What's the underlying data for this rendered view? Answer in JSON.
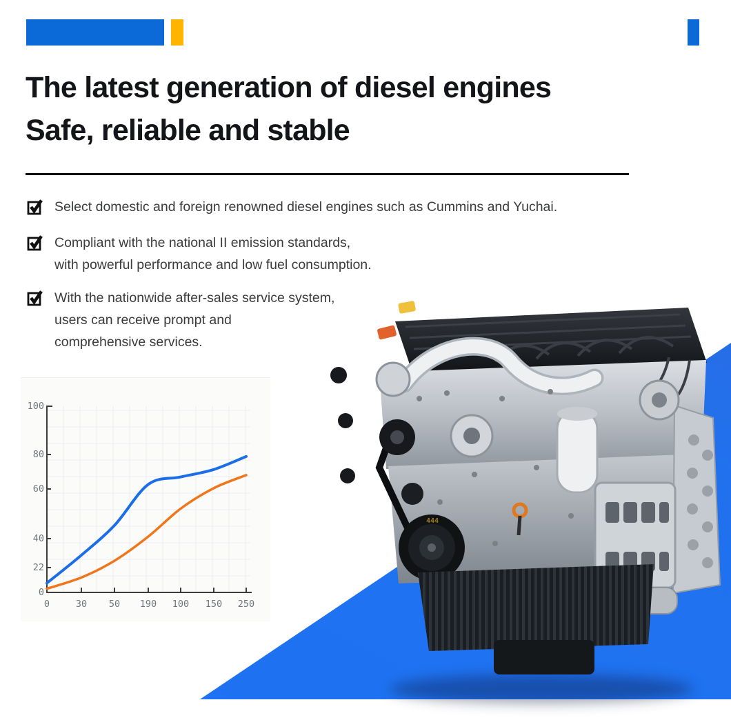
{
  "page": {
    "heading_line1": "The latest generation of diesel engines",
    "heading_line2": "Safe, reliable and stable"
  },
  "bullets": [
    {
      "icon": "checked-checkbox",
      "lines": [
        "Select domestic and foreign renowned diesel engines such as Cummins and Yuchai."
      ]
    },
    {
      "icon": "checked-checkbox",
      "lines": [
        "Compliant with the national II emission standards,",
        "with powerful performance and low fuel consumption."
      ]
    },
    {
      "icon": "checked-checkbox",
      "lines": [
        "With the nationwide after-sales service system,",
        "users can receive prompt and",
        "comprehensive services."
      ]
    }
  ],
  "chart_data": {
    "type": "line",
    "title": "",
    "xlabel": "",
    "ylabel": "",
    "x_tick_labels": [
      "0",
      "30",
      "50",
      "190",
      "100",
      "150",
      "250"
    ],
    "y_tick_labels": [
      "100",
      "80",
      "60",
      "40",
      "22",
      "0"
    ],
    "ylim": [
      0,
      100
    ],
    "grid": true,
    "legend": "none",
    "series": [
      {
        "name": "blue-performance-curve",
        "color": "#1b6ee8",
        "values": [
          5,
          20,
          36,
          58,
          62,
          66,
          73
        ]
      },
      {
        "name": "orange-performance-curve",
        "color": "#f0761c",
        "values": [
          2,
          8,
          17,
          30,
          45,
          56,
          63
        ]
      }
    ]
  },
  "colors": {
    "accent_blue": "#0b6ad8",
    "accent_yellow": "#ffb400",
    "diagonal_blue": "#1d73f4",
    "heading_text": "#141518",
    "body_text": "#3a3b3d",
    "chart_blue": "#1b6ee8",
    "chart_orange": "#f0761c"
  }
}
